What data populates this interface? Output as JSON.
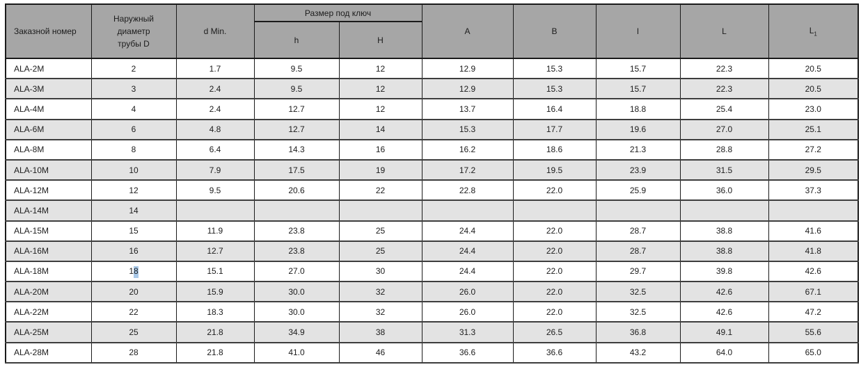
{
  "colors": {
    "header_bg": "#a6a6a6",
    "stripe_bg": "#e3e3e3",
    "border_dark": "#1a1a1a",
    "border_row": "#3d3d3d",
    "text": "#1c1c1c",
    "selection_bg": "#a8c8e8"
  },
  "table": {
    "header": {
      "order_number": "Заказной номер",
      "outer_diameter_lines": [
        "Наружный",
        "диаметр",
        "трубы D"
      ],
      "d_min": "d Min.",
      "wrench_size": "Размер под ключ",
      "h_small": "h",
      "h_cap": "H",
      "a": "A",
      "b": "B",
      "l_small": "l",
      "l_cap": "L",
      "l1_base": "L",
      "l1_sub": "1"
    },
    "rows": [
      [
        "ALA-2M",
        "2",
        "1.7",
        "9.5",
        "12",
        "12.9",
        "15.3",
        "15.7",
        "22.3",
        "20.5"
      ],
      [
        "ALA-3M",
        "3",
        "2.4",
        "9.5",
        "12",
        "12.9",
        "15.3",
        "15.7",
        "22.3",
        "20.5"
      ],
      [
        "ALA-4M",
        "4",
        "2.4",
        "12.7",
        "12",
        "13.7",
        "16.4",
        "18.8",
        "25.4",
        "23.0"
      ],
      [
        "ALA-6M",
        "6",
        "4.8",
        "12.7",
        "14",
        "15.3",
        "17.7",
        "19.6",
        "27.0",
        "25.1"
      ],
      [
        "ALA-8M",
        "8",
        "6.4",
        "14.3",
        "16",
        "16.2",
        "18.6",
        "21.3",
        "28.8",
        "27.2"
      ],
      [
        "ALA-10M",
        "10",
        "7.9",
        "17.5",
        "19",
        "17.2",
        "19.5",
        "23.9",
        "31.5",
        "29.5"
      ],
      [
        "ALA-12M",
        "12",
        "9.5",
        "20.6",
        "22",
        "22.8",
        "22.0",
        "25.9",
        "36.0",
        "37.3"
      ],
      [
        "ALA-14M",
        "14",
        "",
        "",
        "",
        "",
        "",
        "",
        "",
        ""
      ],
      [
        "ALA-15M",
        "15",
        "11.9",
        "23.8",
        "25",
        "24.4",
        "22.0",
        "28.7",
        "38.8",
        "41.6"
      ],
      [
        "ALA-16M",
        "16",
        "12.7",
        "23.8",
        "25",
        "24.4",
        "22.0",
        "28.7",
        "38.8",
        "41.8"
      ],
      [
        "ALA-18M",
        "18",
        "15.1",
        "27.0",
        "30",
        "24.4",
        "22.0",
        "29.7",
        "39.8",
        "42.6"
      ],
      [
        "ALA-20M",
        "20",
        "15.9",
        "30.0",
        "32",
        "26.0",
        "22.0",
        "32.5",
        "42.6",
        "67.1"
      ],
      [
        "ALA-22M",
        "22",
        "18.3",
        "30.0",
        "32",
        "26.0",
        "22.0",
        "32.5",
        "42.6",
        "47.2"
      ],
      [
        "ALA-25M",
        "25",
        "21.8",
        "34.9",
        "38",
        "31.3",
        "26.5",
        "36.8",
        "49.1",
        "55.6"
      ],
      [
        "ALA-28M",
        "28",
        "21.8",
        "41.0",
        "46",
        "36.6",
        "36.6",
        "43.2",
        "64.0",
        "65.0"
      ]
    ],
    "selection": {
      "row": 10,
      "col": 1,
      "before": "1",
      "selected": "8",
      "after": ""
    }
  }
}
